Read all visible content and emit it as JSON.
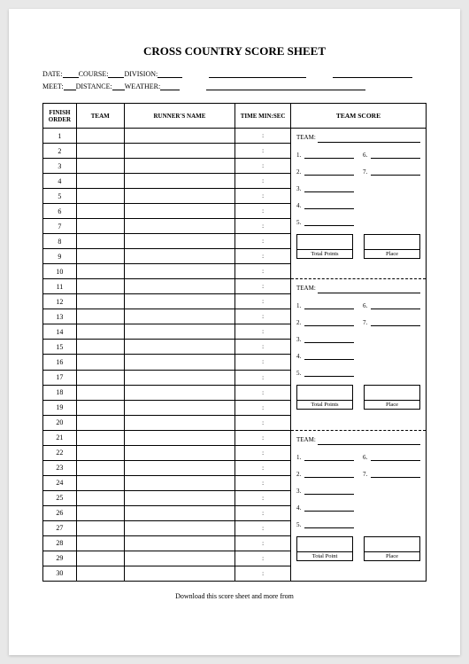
{
  "title": "CROSS COUNTRY SCORE SHEET",
  "meta": {
    "row1": {
      "date": "DATE:",
      "course": "COURSE:",
      "division": "DIVISION:"
    },
    "row2": {
      "meet": "MEET:",
      "distance": "DISTANCE:",
      "weather": "WEATHER:"
    }
  },
  "table": {
    "headers": {
      "order": "FINISH ORDER",
      "team": "TEAM",
      "name": "RUNNER'S NAME",
      "time": "TIME MIN:SEC"
    },
    "rows": 30,
    "time_placeholder": ":"
  },
  "team_score": {
    "header": "TEAM SCORE",
    "team_label": "TEAM:",
    "left_nums": [
      "1.",
      "2.",
      "3.",
      "4.",
      "5."
    ],
    "right_nums": [
      "6.",
      "7."
    ],
    "blocks": [
      {
        "total_label": "Total  Points",
        "place_label": "Place"
      },
      {
        "total_label": "Total  Points",
        "place_label": "Place"
      },
      {
        "total_label": "Total Point",
        "place_label": "Place"
      }
    ]
  },
  "footer": "Download this score sheet and more from"
}
